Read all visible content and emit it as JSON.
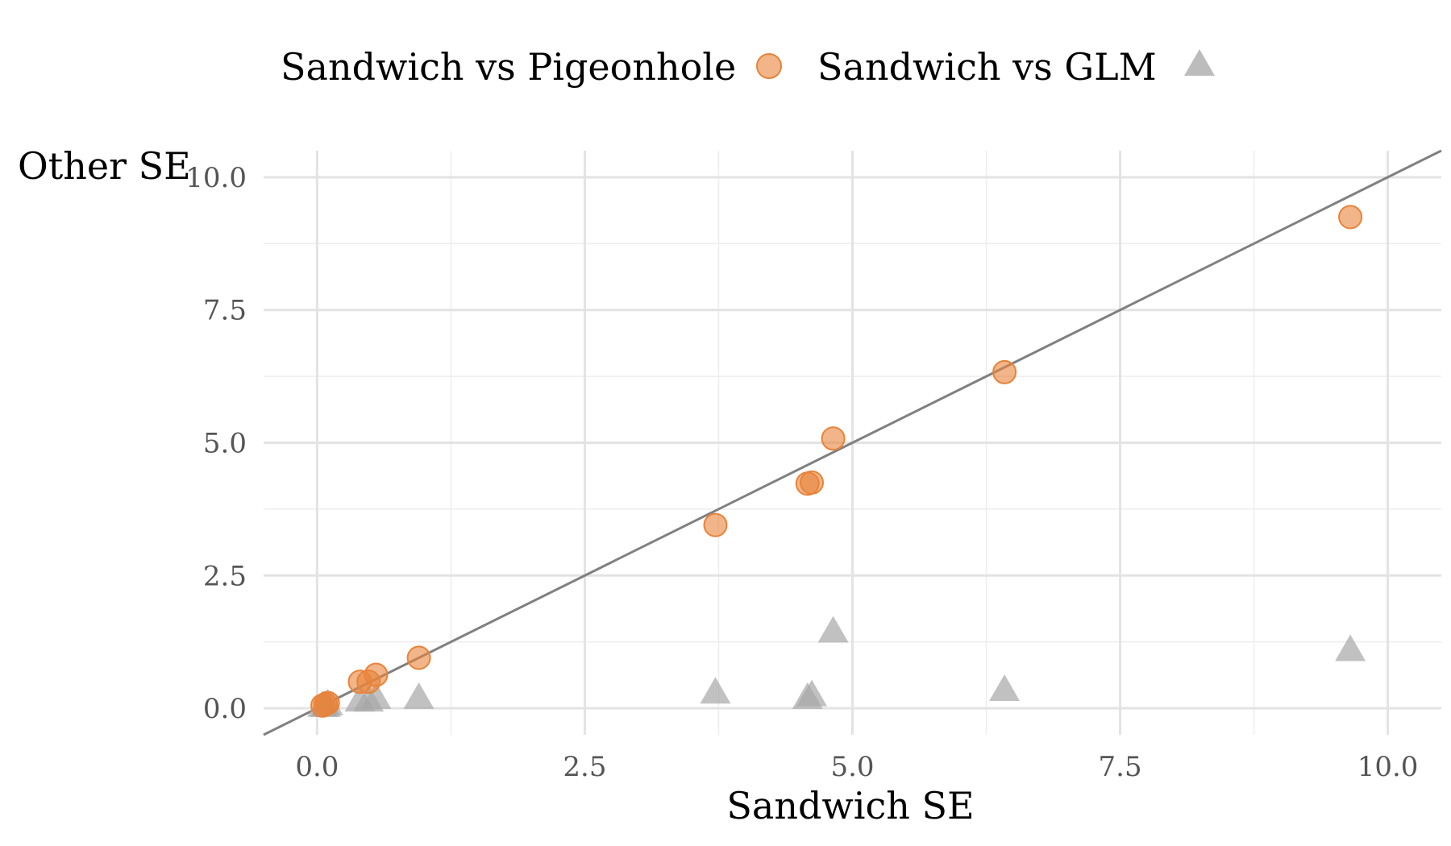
{
  "chart_data": {
    "type": "scatter",
    "xlabel": "Sandwich SE",
    "ylabel": "Other SE",
    "xlim": [
      -0.5,
      10.5
    ],
    "ylim": [
      -0.5,
      10.5
    ],
    "x_ticks": [
      0.0,
      2.5,
      5.0,
      7.5,
      10.0
    ],
    "y_ticks": [
      0.0,
      2.5,
      5.0,
      7.5,
      10.0
    ],
    "x_tick_labels": [
      "0.0",
      "2.5",
      "5.0",
      "7.5",
      "10.0"
    ],
    "y_tick_labels": [
      "0.0",
      "2.5",
      "5.0",
      "7.5",
      "10.0"
    ],
    "grid": true,
    "legend_position": "top",
    "reference_line": {
      "type": "identity",
      "slope": 1,
      "intercept": 0,
      "color": "#808080"
    },
    "series": [
      {
        "name": "Sandwich vs Pigeonhole",
        "marker": "circle",
        "color": "#E8833A",
        "x": [
          0.05,
          0.08,
          0.1,
          0.4,
          0.48,
          0.55,
          0.95,
          3.72,
          4.58,
          4.62,
          4.82,
          6.42,
          9.65
        ],
        "y": [
          0.05,
          0.08,
          0.1,
          0.5,
          0.5,
          0.63,
          0.95,
          3.45,
          4.23,
          4.25,
          5.08,
          6.33,
          9.25
        ]
      },
      {
        "name": "Sandwich vs GLM",
        "marker": "triangle",
        "color": "#A6A6A6",
        "x": [
          0.05,
          0.08,
          0.1,
          0.4,
          0.48,
          0.55,
          0.95,
          3.72,
          4.58,
          4.62,
          4.82,
          6.42,
          9.65
        ],
        "y": [
          0.05,
          0.05,
          0.08,
          0.15,
          0.15,
          0.2,
          0.2,
          0.3,
          0.2,
          0.25,
          1.45,
          0.35,
          1.1
        ]
      }
    ]
  }
}
